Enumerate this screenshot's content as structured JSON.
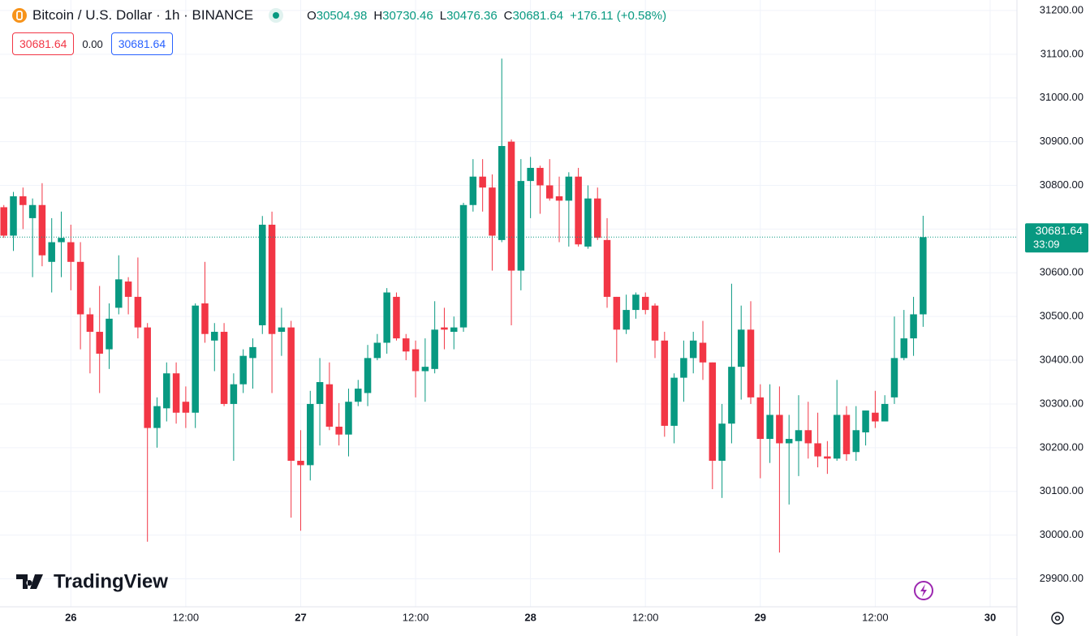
{
  "header": {
    "symbol": "Bitcoin / U.S. Dollar · 1h · BINANCE",
    "ohlc": [
      {
        "label": "O",
        "value": 30504.98
      },
      {
        "label": "H",
        "value": 30730.46
      },
      {
        "label": "L",
        "value": 30476.36
      },
      {
        "label": "C",
        "value": 30681.64
      }
    ],
    "change": "+176.11 (+0.58%)"
  },
  "order_panel": {
    "sell": "30681.64",
    "spread": "0.00",
    "buy": "30681.64"
  },
  "logo": "TradingView",
  "chart_data": {
    "type": "candlestick",
    "up_color": "#089981",
    "down_color": "#f23645",
    "grid": true,
    "last_price": 30681.64,
    "countdown": "33:09",
    "xlim": [
      -0.4,
      105.8
    ],
    "xticks": [
      {
        "value": 7,
        "label": "26"
      },
      {
        "value": 19,
        "label": "12:00"
      },
      {
        "value": 31,
        "label": "27"
      },
      {
        "value": 43,
        "label": "12:00"
      },
      {
        "value": 55,
        "label": "28"
      },
      {
        "value": 67,
        "label": "12:00"
      },
      {
        "value": 79,
        "label": "29"
      },
      {
        "value": 91,
        "label": "12:00"
      },
      {
        "value": 103,
        "label": "30"
      }
    ],
    "ylim": [
      29836,
      31224
    ],
    "yticks": [
      {
        "value": 29900,
        "label": "29900.00"
      },
      {
        "value": 30000,
        "label": "30000.00"
      },
      {
        "value": 30100,
        "label": "30100.00"
      },
      {
        "value": 30200,
        "label": "30200.00"
      },
      {
        "value": 30300,
        "label": "30300.00"
      },
      {
        "value": 30400,
        "label": "30400.00"
      },
      {
        "value": 30500,
        "label": "30500.00"
      },
      {
        "value": 30600,
        "label": "30600.00"
      },
      {
        "value": 30700,
        "label": "30700.00"
      },
      {
        "value": 30800,
        "label": "30800.00"
      },
      {
        "value": 30900,
        "label": "30900.00"
      },
      {
        "value": 31000,
        "label": "31000.00"
      },
      {
        "value": 31100,
        "label": "31100.00"
      },
      {
        "value": 31200,
        "label": "31200.00"
      }
    ],
    "open": [
      30750,
      30685,
      30775,
      30725,
      30755,
      30625,
      30670,
      30670,
      30625,
      30505,
      30465,
      30425,
      30520,
      30580,
      30545,
      30475,
      30245,
      30290,
      30370,
      30305,
      30280,
      30530,
      30445,
      30465,
      30300,
      30345,
      30405,
      30480,
      30710,
      30465,
      30475,
      30170,
      30160,
      30300,
      30345,
      30248,
      30230,
      30305,
      30325,
      30405,
      30440,
      30545,
      30450,
      30425,
      30375,
      30380,
      30475,
      30465,
      30475,
      30755,
      30820,
      30795,
      30675,
      30900,
      30605,
      30810,
      30840,
      30800,
      30775,
      30765,
      30820,
      30660,
      30770,
      30675,
      30545,
      30470,
      30515,
      30545,
      30525,
      30445,
      30250,
      30360,
      30405,
      30440,
      30395,
      30170,
      30255,
      30385,
      30470,
      30315,
      30220,
      30275,
      30210,
      30215,
      30240,
      30210,
      30180,
      30175,
      30275,
      30190,
      30235,
      30280,
      30260,
      30315,
      30405,
      30450,
      30504.98
    ],
    "high": [
      30755,
      30785,
      30795,
      30770,
      30805,
      30725,
      30740,
      30710,
      30670,
      30520,
      30570,
      30530,
      30640,
      30590,
      30635,
      30485,
      30315,
      30395,
      30395,
      30340,
      30530,
      30625,
      30485,
      30485,
      30370,
      30425,
      30450,
      30730,
      30740,
      30520,
      30490,
      30240,
      30330,
      30405,
      30395,
      30302,
      30335,
      30355,
      30435,
      30460,
      30565,
      30555,
      30460,
      30445,
      30450,
      30535,
      30520,
      30500,
      30760,
      30860,
      30860,
      30825,
      31090,
      30905,
      30860,
      30865,
      30845,
      30860,
      30820,
      30830,
      30840,
      30800,
      30795,
      30725,
      30545,
      30550,
      30555,
      30555,
      30530,
      30465,
      30370,
      30445,
      30465,
      30490,
      30395,
      30300,
      30575,
      30525,
      30535,
      30345,
      30345,
      30340,
      30275,
      30320,
      30305,
      30280,
      30215,
      30355,
      30295,
      30295,
      30285,
      30330,
      30320,
      30500,
      30515,
      30545,
      30730.46
    ],
    "low": [
      30680,
      30650,
      30700,
      30590,
      30615,
      30555,
      30590,
      30560,
      30425,
      30370,
      30325,
      30380,
      30505,
      30505,
      30450,
      29985,
      30200,
      30260,
      30255,
      30245,
      30245,
      30440,
      30375,
      30295,
      30170,
      30325,
      30335,
      30460,
      30325,
      30410,
      30040,
      30010,
      30125,
      30205,
      30240,
      30205,
      30180,
      30295,
      30295,
      30400,
      30415,
      30445,
      30400,
      30315,
      30305,
      30370,
      30425,
      30425,
      30465,
      30740,
      30740,
      30605,
      30670,
      30480,
      30560,
      30725,
      30735,
      30765,
      30670,
      30660,
      30660,
      30655,
      30675,
      30520,
      30395,
      30460,
      30495,
      30505,
      30405,
      30225,
      30210,
      30305,
      30370,
      30355,
      30105,
      30085,
      30210,
      30310,
      30300,
      30130,
      30165,
      29960,
      30070,
      30135,
      30175,
      30155,
      30140,
      30170,
      30170,
      30170,
      30205,
      30245,
      30260,
      30300,
      30400,
      30410,
      30476.36
    ],
    "close": [
      30685,
      30775,
      30755,
      30755,
      30640,
      30670,
      30680,
      30625,
      30505,
      30465,
      30415,
      30495,
      30585,
      30545,
      30475,
      30245,
      30295,
      30370,
      30280,
      30280,
      30525,
      30460,
      30465,
      30300,
      30345,
      30410,
      30430,
      30710,
      30460,
      30475,
      30170,
      30160,
      30300,
      30350,
      30248,
      30230,
      30305,
      30335,
      30405,
      30440,
      30555,
      30450,
      30420,
      30375,
      30385,
      30470,
      30470,
      30475,
      30755,
      30820,
      30795,
      30685,
      30890,
      30605,
      30810,
      30840,
      30800,
      30770,
      30765,
      30820,
      30665,
      30770,
      30680,
      30545,
      30470,
      30515,
      30550,
      30515,
      30445,
      30250,
      30360,
      30405,
      30445,
      30395,
      30170,
      30255,
      30385,
      30470,
      30315,
      30220,
      30275,
      30210,
      30220,
      30240,
      30210,
      30180,
      30175,
      30275,
      30185,
      30240,
      30285,
      30260,
      30300,
      30405,
      30450,
      30505,
      30681.64
    ]
  }
}
